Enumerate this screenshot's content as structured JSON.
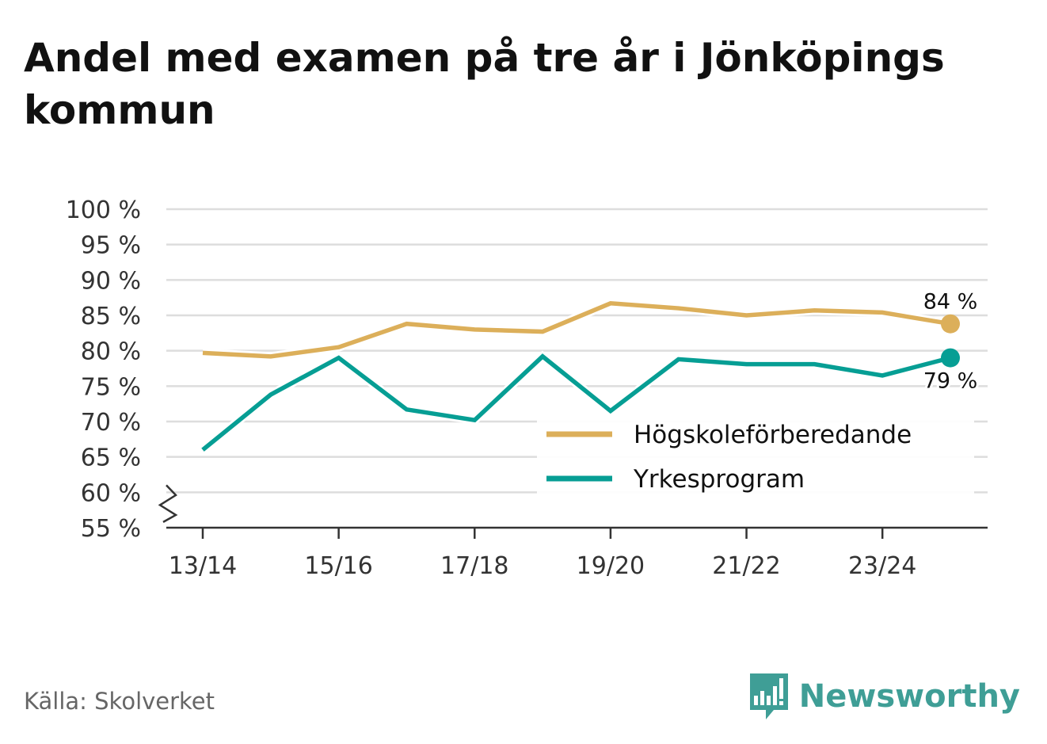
{
  "title": "Andel med examen på tre år i Jönköpings kommun",
  "source": "Källa: Skolverket",
  "brand": {
    "name": "Newsworthy",
    "icon": "bar-chart-speech-bubble-icon",
    "color": "#3f9e96"
  },
  "chart_data": {
    "type": "line",
    "x": [
      "13/14",
      "14/15",
      "15/16",
      "16/17",
      "17/18",
      "18/19",
      "19/20",
      "20/21",
      "21/22",
      "22/23",
      "23/24",
      "24/25"
    ],
    "x_tick_labels": [
      "13/14",
      "15/16",
      "17/18",
      "19/20",
      "21/22",
      "23/24"
    ],
    "y_tick_labels": [
      "100 %",
      "95 %",
      "90 %",
      "85 %",
      "80 %",
      "75 %",
      "70 %",
      "65 %",
      "60 %",
      "55 %"
    ],
    "y_ticks": [
      100,
      95,
      90,
      85,
      80,
      75,
      70,
      65,
      60,
      55
    ],
    "ylim": [
      55,
      100
    ],
    "y_axis_break": true,
    "grid": "horizontal",
    "legend_position": "bottom-right",
    "series": [
      {
        "name": "Högskoleförberedande",
        "color": "#dcaf5a",
        "values": [
          79.7,
          79.2,
          80.5,
          83.8,
          83.0,
          82.7,
          86.7,
          86.0,
          85.0,
          85.7,
          85.4,
          83.8
        ],
        "end_label": "84 %"
      },
      {
        "name": "Yrkesprogram",
        "color": "#069e94",
        "values": [
          66.0,
          73.8,
          79.0,
          71.7,
          70.2,
          79.2,
          71.5,
          78.8,
          78.1,
          78.1,
          76.5,
          79.0
        ],
        "end_label": "79 %"
      }
    ]
  }
}
